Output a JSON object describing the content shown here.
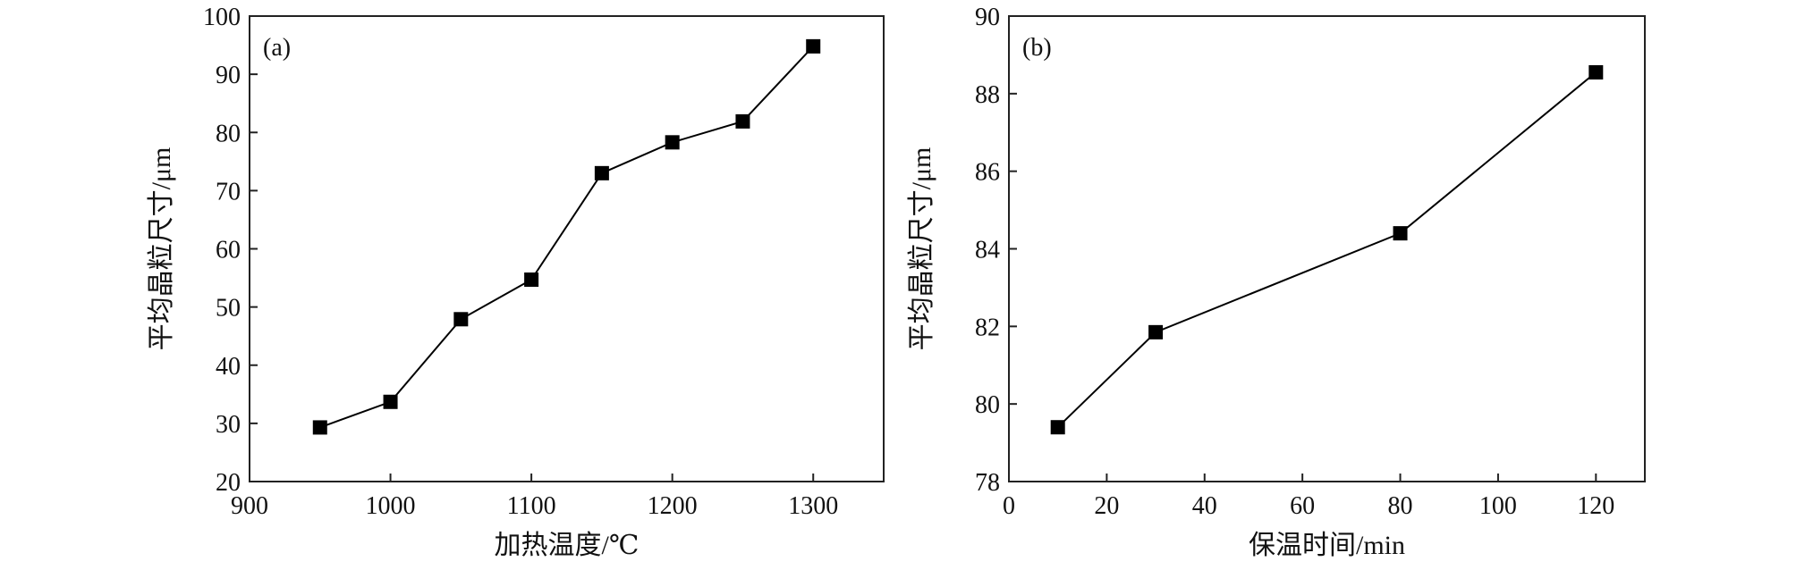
{
  "chart_data": [
    {
      "type": "line",
      "panel_label": "(a)",
      "xlabel": "加热温度/℃",
      "ylabel": "平均晶粒尺寸/μm",
      "xlim": [
        900,
        1350
      ],
      "ylim": [
        20,
        100
      ],
      "xticks": [
        900,
        1000,
        1100,
        1200,
        1300
      ],
      "yticks": [
        20,
        30,
        40,
        50,
        60,
        70,
        80,
        90,
        100
      ],
      "x": [
        950,
        1000,
        1050,
        1100,
        1150,
        1200,
        1250,
        1300
      ],
      "y": [
        29.3,
        33.7,
        47.9,
        54.7,
        73.0,
        78.3,
        81.9,
        94.8
      ],
      "marker": "square",
      "color": "#000000",
      "grid": false
    },
    {
      "type": "line",
      "panel_label": "(b)",
      "xlabel": "保温时间/min",
      "ylabel": "平均晶粒尺寸/μm",
      "xlim": [
        0,
        130
      ],
      "ylim": [
        78,
        90
      ],
      "xticks": [
        0,
        20,
        40,
        60,
        80,
        100,
        120
      ],
      "yticks": [
        78,
        80,
        82,
        84,
        86,
        88,
        90
      ],
      "x": [
        10,
        30,
        80,
        120
      ],
      "y": [
        79.4,
        81.85,
        84.4,
        88.55
      ],
      "marker": "square",
      "color": "#000000",
      "grid": false
    }
  ]
}
